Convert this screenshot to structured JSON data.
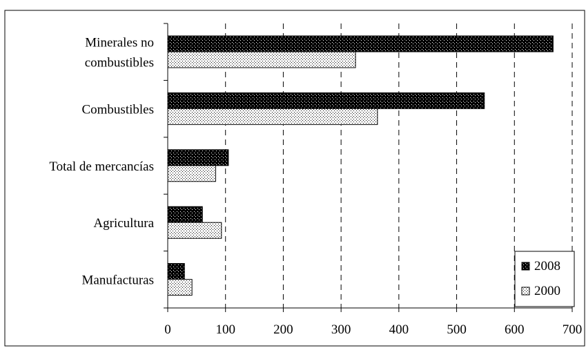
{
  "chart_data": {
    "type": "bar",
    "orientation": "horizontal",
    "title": "",
    "xlabel": "",
    "ylabel": "",
    "categories": [
      [
        "Minerales no",
        "combustibles"
      ],
      [
        "Combustibles"
      ],
      [
        "Total de mercancías"
      ],
      [
        "Agricultura"
      ],
      [
        "Manufacturas"
      ]
    ],
    "series": [
      {
        "name": "2008",
        "values": [
          667,
          548,
          105,
          60,
          29
        ]
      },
      {
        "name": "2000",
        "values": [
          325,
          363,
          83,
          93,
          42
        ]
      }
    ],
    "xlim": [
      0,
      700
    ],
    "x_ticks": [
      0,
      100,
      200,
      300,
      400,
      500,
      600,
      700
    ],
    "grid": "vertical dashed",
    "legend_position": "bottom-right"
  },
  "colors": {
    "bar_2008": "#000000",
    "bar_2000": "#ffffff"
  }
}
